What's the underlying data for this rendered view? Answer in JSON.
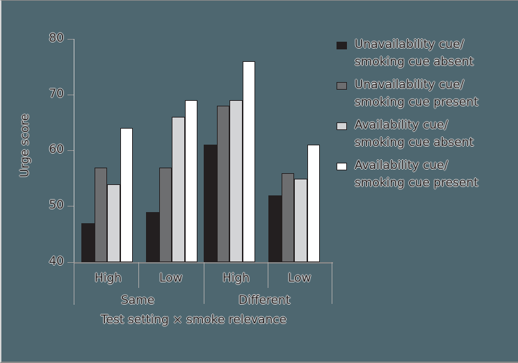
{
  "chart_data": {
    "type": "bar",
    "title": "",
    "xlabel": "Test setting × smoke relevance",
    "ylabel": "Urge score",
    "ylim": [
      40,
      80
    ],
    "yticks": [
      40,
      50,
      60,
      70,
      80
    ],
    "grid": false,
    "legend_position": "right",
    "groups": [
      {
        "outer": "Same",
        "inner": [
          "High",
          "Low"
        ]
      },
      {
        "outer": "Different",
        "inner": [
          "High",
          "Low"
        ]
      }
    ],
    "categories": [
      "Same / High",
      "Same / Low",
      "Different / High",
      "Different / Low"
    ],
    "series": [
      {
        "name": "Unavailability cue/ smoking cue absent",
        "color": "#231f20",
        "values": [
          47,
          49,
          61,
          52
        ]
      },
      {
        "name": "Unavailability cue/ smoking cue present",
        "color": "#6d6e70",
        "values": [
          57,
          57,
          68,
          56
        ]
      },
      {
        "name": "Availability cue/ smoking cue absent",
        "color": "#d3d4d6",
        "values": [
          54,
          66,
          69,
          55
        ]
      },
      {
        "name": "Availability cue/ smoking cue present",
        "color": "#ffffff",
        "values": [
          64,
          69,
          76,
          61
        ]
      }
    ]
  },
  "axis": {
    "ylabel": "Urge score",
    "xlabel": "Test setting × smoke relevance",
    "ticks": [
      "80",
      "70",
      "60",
      "50",
      "40"
    ],
    "inner_labels": [
      "High",
      "Low",
      "High",
      "Low"
    ],
    "outer_labels": [
      "Same",
      "Different"
    ]
  },
  "legend": {
    "items": [
      {
        "line1": "Unavailability cue/",
        "line2": "smoking cue absent"
      },
      {
        "line1": "Unavailability cue/",
        "line2": "smoking cue present"
      },
      {
        "line1": "Availability cue/",
        "line2": "smoking cue absent"
      },
      {
        "line1": "Availability cue/",
        "line2": "smoking cue present"
      }
    ]
  }
}
